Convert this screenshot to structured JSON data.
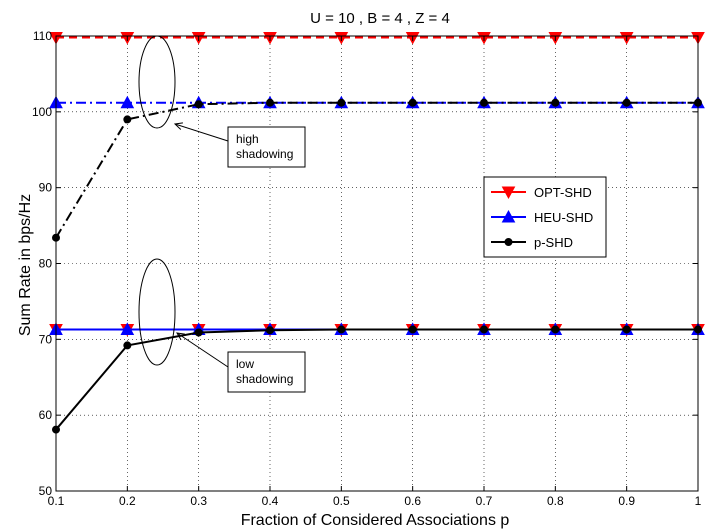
{
  "chart_data": {
    "type": "line",
    "title": "U = 10 , B = 4 , Z = 4",
    "xlabel": "Fraction of Considered Associations p",
    "ylabel": "Sum Rate in bps/Hz",
    "xlim": [
      0.1,
      1
    ],
    "ylim": [
      50,
      110
    ],
    "xticks": [
      "0.1",
      "0.2",
      "0.3",
      "0.4",
      "0.5",
      "0.6",
      "0.7",
      "0.8",
      "0.9",
      "1"
    ],
    "yticks": [
      "50",
      "60",
      "70",
      "80",
      "90",
      "100",
      "110"
    ],
    "grid": true,
    "legend_position": "middle-right",
    "x": [
      0.1,
      0.2,
      0.3,
      0.4,
      0.5,
      0.6,
      0.7,
      0.8,
      0.9,
      1.0
    ],
    "series": [
      {
        "name": "OPT-SHD",
        "group": "high",
        "color": "#ff0000",
        "marker": "triangle-down",
        "dash": "dashed",
        "values": [
          109.8,
          109.8,
          109.8,
          109.8,
          109.8,
          109.8,
          109.8,
          109.8,
          109.8,
          109.8
        ]
      },
      {
        "name": "HEU-SHD",
        "group": "high",
        "color": "#0000ff",
        "marker": "triangle-up",
        "dash": "dashdot",
        "values": [
          101.2,
          101.2,
          101.2,
          101.2,
          101.2,
          101.2,
          101.2,
          101.2,
          101.2,
          101.2
        ]
      },
      {
        "name": "p-SHD",
        "group": "high",
        "color": "#000000",
        "marker": "circle",
        "dash": "dashdot",
        "values": [
          83.4,
          99.0,
          101.0,
          101.2,
          101.2,
          101.2,
          101.2,
          101.2,
          101.2,
          101.2
        ]
      },
      {
        "name": "OPT-SHD",
        "group": "low",
        "color": "#ff0000",
        "marker": "triangle-down",
        "dash": "solid",
        "values": [
          71.3,
          71.3,
          71.3,
          71.3,
          71.3,
          71.3,
          71.3,
          71.3,
          71.3,
          71.3
        ]
      },
      {
        "name": "HEU-SHD",
        "group": "low",
        "color": "#0000ff",
        "marker": "triangle-up",
        "dash": "solid",
        "values": [
          71.3,
          71.3,
          71.3,
          71.3,
          71.3,
          71.3,
          71.3,
          71.3,
          71.3,
          71.3
        ]
      },
      {
        "name": "p-SHD",
        "group": "low",
        "color": "#000000",
        "marker": "circle",
        "dash": "solid",
        "values": [
          58.1,
          69.2,
          70.9,
          71.2,
          71.3,
          71.3,
          71.3,
          71.3,
          71.3,
          71.3
        ]
      }
    ],
    "legend": [
      {
        "name": "OPT-SHD",
        "color": "#ff0000",
        "marker": "triangle-down"
      },
      {
        "name": "HEU-SHD",
        "color": "#0000ff",
        "marker": "triangle-up"
      },
      {
        "name": "p-SHD",
        "color": "#000000",
        "marker": "circle"
      }
    ],
    "annotations": [
      {
        "lines": [
          "high",
          "shadowing"
        ],
        "target_x": 0.25,
        "target_y": 104
      },
      {
        "lines": [
          "low",
          "shadowing"
        ],
        "target_x": 0.25,
        "target_y": 71
      }
    ]
  }
}
